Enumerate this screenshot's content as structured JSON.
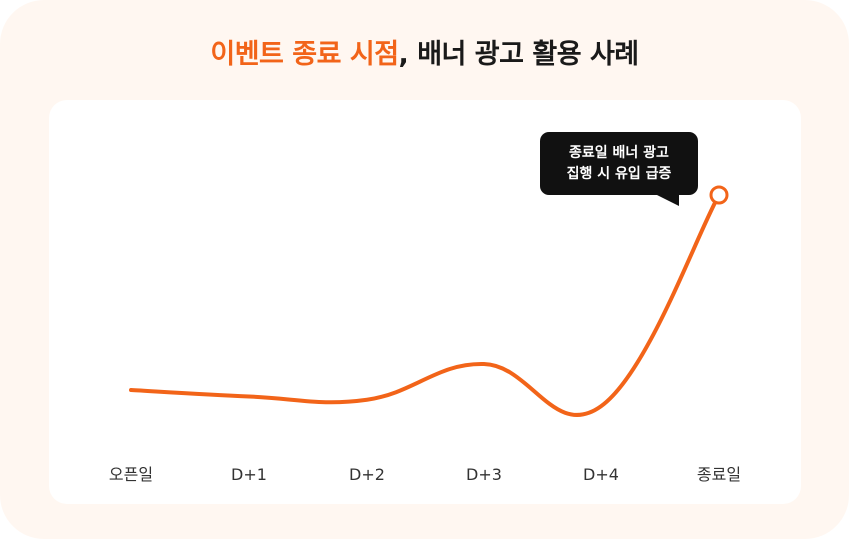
{
  "title": {
    "highlight": "이벤트 종료 시점",
    "rest": ", 배너 광고 활용 사례"
  },
  "colors": {
    "accent": "#f26419",
    "card_bg": "#fff7f1",
    "panel_bg": "#ffffff",
    "tooltip_bg": "#111111",
    "axis_text": "#333333"
  },
  "tooltip": {
    "line1": "종료일 배너 광고",
    "line2": "집행 시 유입 급증"
  },
  "chart_data": {
    "type": "line",
    "title": "",
    "xlabel": "",
    "ylabel": "",
    "categories": [
      "오픈일",
      "D+1",
      "D+2",
      "D+3",
      "D+4",
      "종료일"
    ],
    "values": [
      2.0,
      1.8,
      1.7,
      2.8,
      1.5,
      8.0
    ],
    "ylim": [
      0,
      10
    ],
    "grid": false,
    "legend": "none",
    "annotations": [
      {
        "category": "종료일",
        "text": "종료일 배너 광고 집행 시 유입 급증"
      }
    ]
  }
}
